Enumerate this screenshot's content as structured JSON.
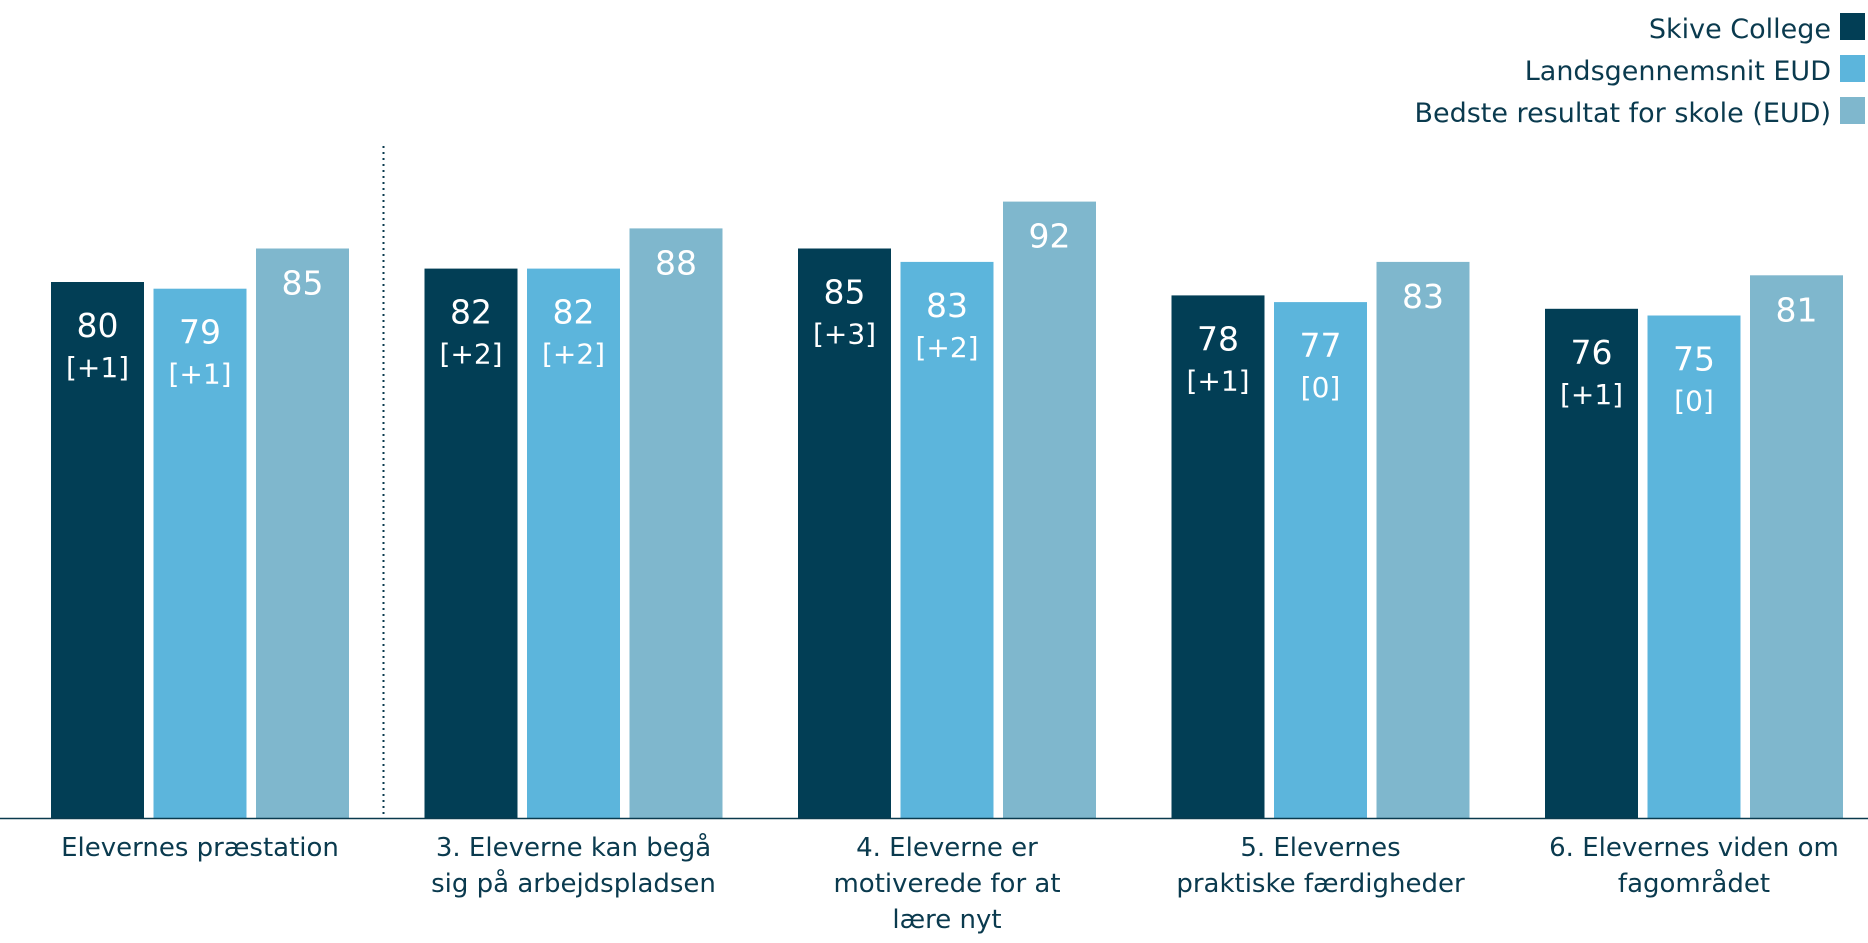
{
  "chart_data": {
    "type": "bar",
    "categories": [
      "Elevernes præstation",
      "3. Eleverne kan begå sig på arbejdspladsen",
      "4. Eleverne er motiverede for at lære nyt",
      "5. Elevernes praktiske færdigheder",
      "6. Elevernes viden om fagområdet"
    ],
    "series": [
      {
        "name": "Skive College",
        "color": "#023e55",
        "values": [
          80,
          82,
          85,
          78,
          76
        ],
        "changes": [
          "[+1]",
          "[+2]",
          "[+3]",
          "[+1]",
          "[+1]"
        ]
      },
      {
        "name": "Landsgennemsnit EUD",
        "color": "#5cb5dc",
        "values": [
          79,
          82,
          83,
          77,
          75
        ],
        "changes": [
          "[+1]",
          "[+2]",
          "[+2]",
          "[0]",
          "[0]"
        ]
      },
      {
        "name": "Bedste resultat for skole (EUD)",
        "color": "#7fb7cd",
        "values": [
          85,
          88,
          92,
          83,
          81
        ],
        "changes": [
          "",
          "",
          "",
          "",
          ""
        ]
      }
    ],
    "ylim": [
      0,
      100
    ],
    "grid": false,
    "legend": "top-right",
    "separator_after_category": 0,
    "title": "",
    "xlabel": "",
    "ylabel": ""
  }
}
